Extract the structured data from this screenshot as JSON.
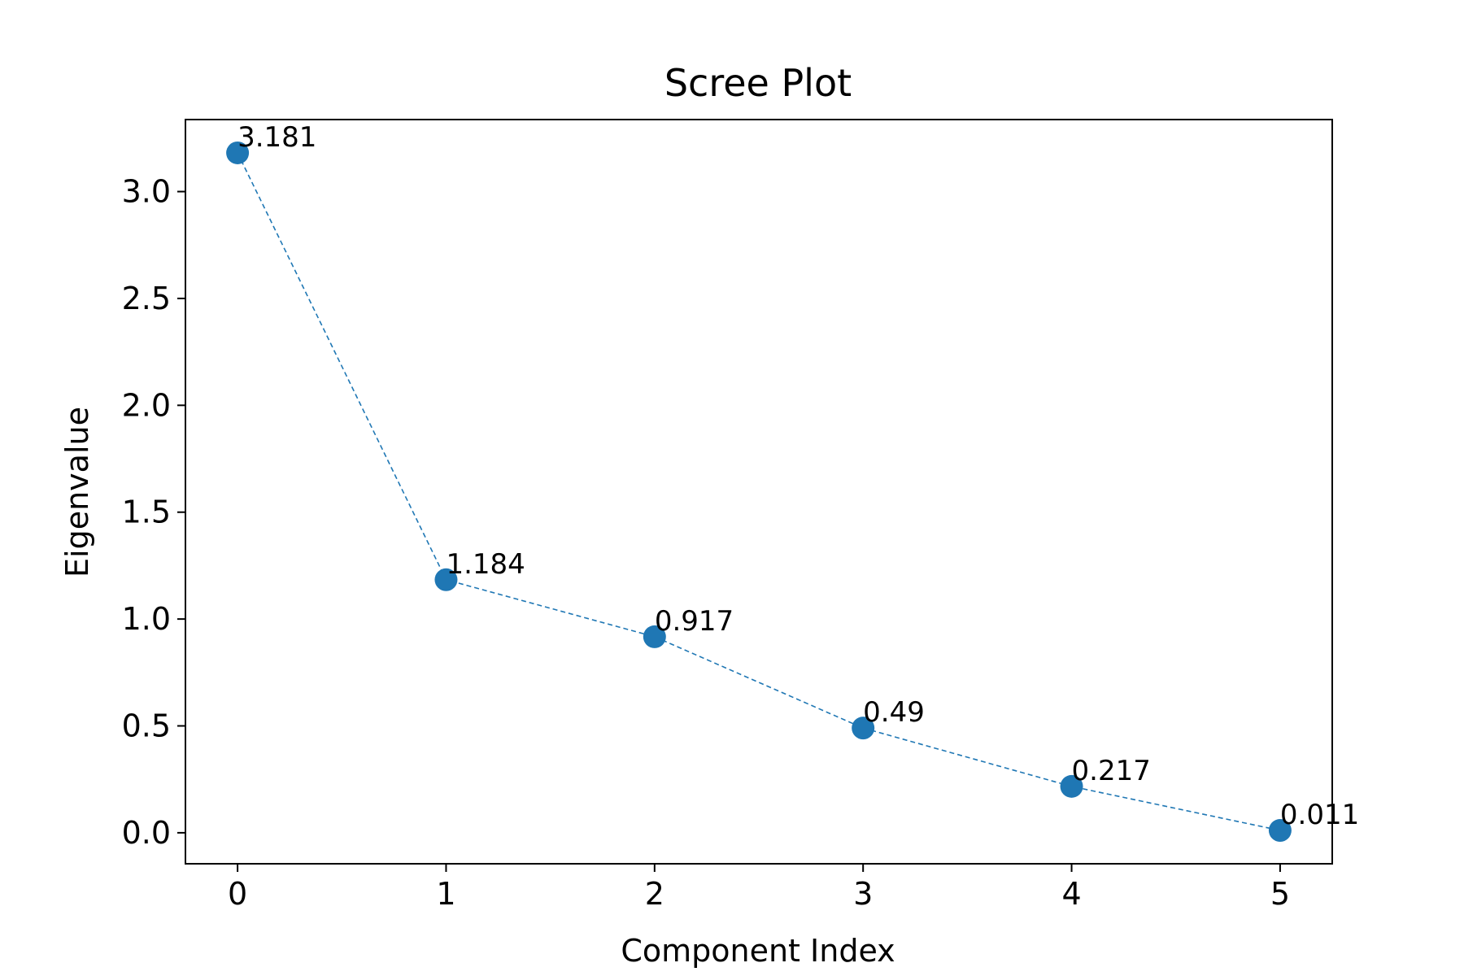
{
  "chart_data": {
    "type": "line",
    "title": "Scree Plot",
    "xlabel": "Component Index",
    "ylabel": "Eigenvalue",
    "x": [
      0,
      1,
      2,
      3,
      4,
      5
    ],
    "values": [
      3.181,
      1.184,
      0.917,
      0.49,
      0.217,
      0.011
    ],
    "data_labels": [
      "3.181",
      "1.184",
      "0.917",
      "0.49",
      "0.217",
      "0.011"
    ],
    "xticks": [
      "0",
      "1",
      "2",
      "3",
      "4",
      "5"
    ],
    "yticks": [
      "0.0",
      "0.5",
      "1.0",
      "1.5",
      "2.0",
      "2.5",
      "3.0"
    ],
    "xlim": [
      -0.25,
      5.25
    ],
    "ylim": [
      -0.145,
      3.337
    ],
    "line_style": "dashed",
    "markers": "circle",
    "grid": false,
    "legend": "none",
    "color": "#1f77b4"
  }
}
